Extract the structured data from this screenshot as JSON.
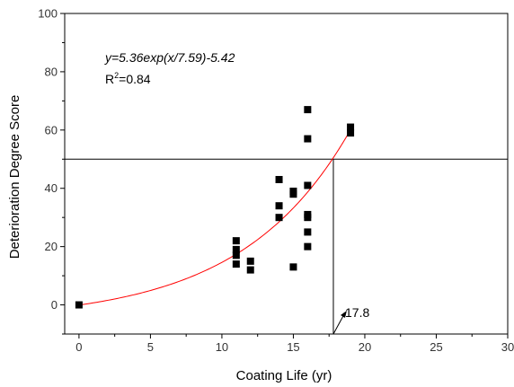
{
  "chart_data": {
    "type": "scatter",
    "xlabel": "Coating Life (yr)",
    "ylabel": "Deterioration Degree Score",
    "xlim": [
      -1,
      30
    ],
    "ylim": [
      -10,
      100
    ],
    "x_ticks": [
      0,
      5,
      10,
      15,
      20,
      25,
      30
    ],
    "y_ticks": [
      0,
      20,
      40,
      60,
      80,
      100
    ],
    "grid": false,
    "points": [
      {
        "x": 0,
        "y": 0
      },
      {
        "x": 11,
        "y": 22
      },
      {
        "x": 11,
        "y": 19
      },
      {
        "x": 11,
        "y": 17
      },
      {
        "x": 11,
        "y": 14
      },
      {
        "x": 12,
        "y": 15
      },
      {
        "x": 12,
        "y": 12
      },
      {
        "x": 14,
        "y": 43
      },
      {
        "x": 14,
        "y": 34
      },
      {
        "x": 14,
        "y": 30
      },
      {
        "x": 15,
        "y": 39
      },
      {
        "x": 15,
        "y": 38
      },
      {
        "x": 15,
        "y": 13
      },
      {
        "x": 16,
        "y": 67
      },
      {
        "x": 16,
        "y": 57
      },
      {
        "x": 16,
        "y": 41
      },
      {
        "x": 16,
        "y": 31
      },
      {
        "x": 16,
        "y": 30
      },
      {
        "x": 16,
        "y": 25
      },
      {
        "x": 16,
        "y": 20
      },
      {
        "x": 19,
        "y": 61
      },
      {
        "x": 19,
        "y": 59
      }
    ],
    "fit": {
      "equation": "y=5.36exp(x/7.59)-5.42",
      "r2_prefix": "R",
      "r2_sup": "2",
      "r2_value": "=0.84",
      "a": 5.36,
      "b": 7.59,
      "c": -5.42,
      "x_range": [
        0,
        19
      ],
      "color": "#ff0000"
    },
    "threshold": {
      "y": 50,
      "x_intersect": 17.8,
      "label": "17.8"
    }
  }
}
